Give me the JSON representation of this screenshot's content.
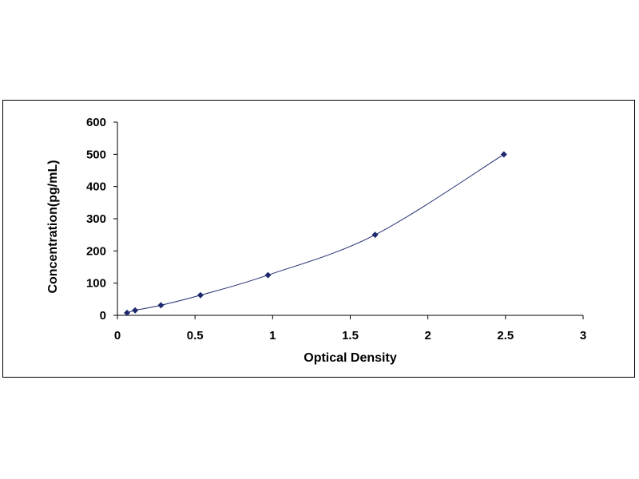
{
  "chart_data": {
    "type": "scatter",
    "title": "",
    "xlabel": "Optical Density",
    "ylabel": "Concentration(pg/mL)",
    "xlim": [
      0,
      3
    ],
    "ylim": [
      0,
      600
    ],
    "xticks": [
      "0",
      "0.5",
      "1",
      "1.5",
      "2",
      "2.5",
      "3"
    ],
    "yticks": [
      "0",
      "100",
      "200",
      "300",
      "400",
      "500",
      "600"
    ],
    "grid": false,
    "legend": "none",
    "marker": "diamond",
    "series": [
      {
        "x": [
          0.062,
          0.114,
          0.28,
          0.535,
          0.97,
          1.66,
          2.49
        ],
        "y": [
          7.8,
          15.6,
          31.25,
          62.5,
          125,
          250,
          500
        ],
        "color": "#1f2a6e",
        "line": "smooth fit"
      }
    ]
  }
}
